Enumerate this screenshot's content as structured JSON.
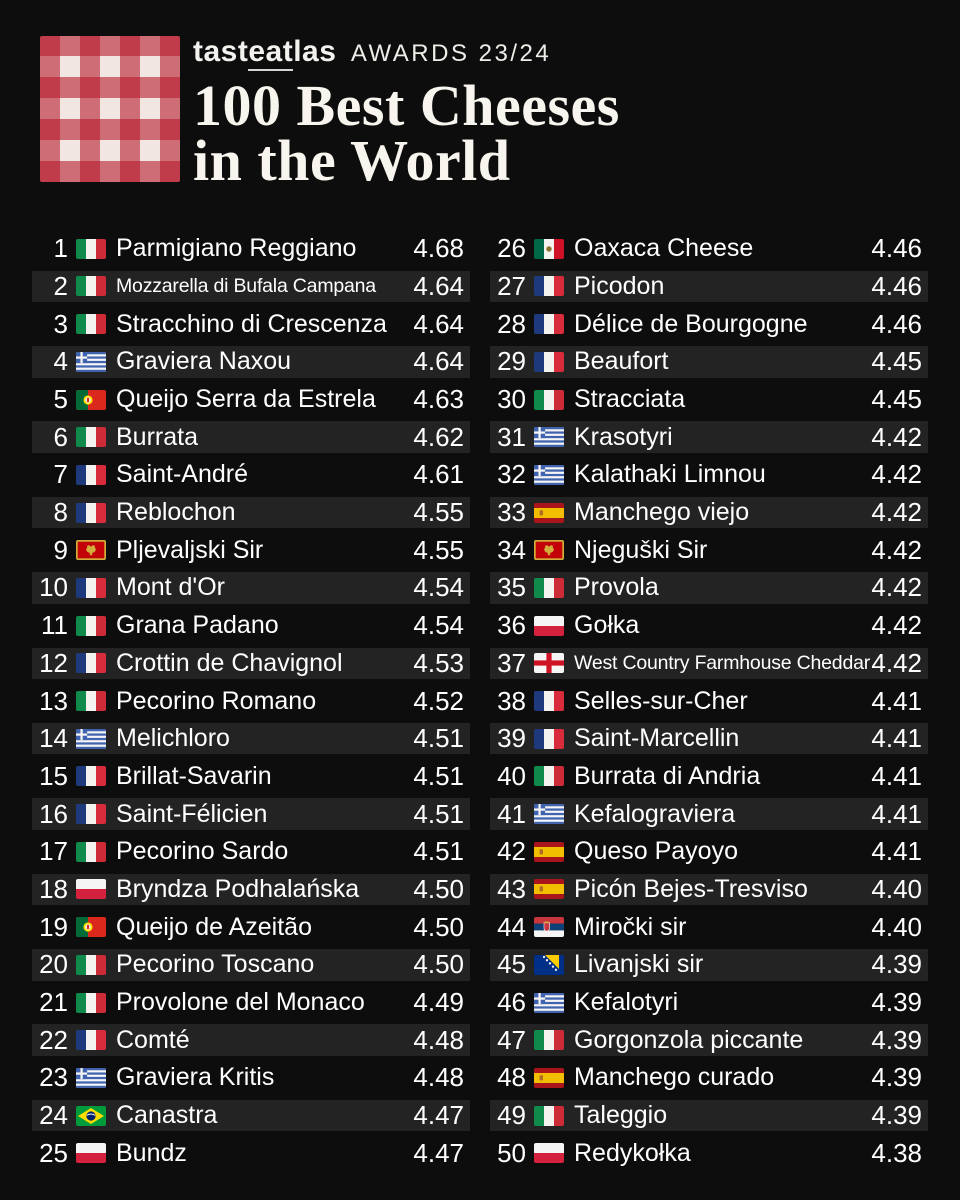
{
  "header": {
    "brand_pre": "tast",
    "brand_mid": "eat",
    "brand_post": "las",
    "awards": "AWARDS 23/24",
    "title_line1": "100 Best Cheeses",
    "title_line2": "in the World"
  },
  "colors": {
    "background": "#0D0D0D",
    "row_alt": "#232323",
    "text": "#FFFFFF",
    "title_text": "#F8F5EE",
    "logo_red": "#B71C2D",
    "logo_base": "#F2E6E2"
  },
  "logo_icon": "tasteatlas-gingham-checker",
  "chart_data": {
    "type": "table",
    "title": "100 Best Cheeses in the World",
    "subtitle": "tasteatlas AWARDS 23/24",
    "columns": [
      "rank",
      "country",
      "cheese",
      "rating"
    ],
    "layout": {
      "columns_split": [
        1,
        25,
        26,
        50
      ],
      "rating_min_shown": "4.38",
      "rating_max_shown": "4.68"
    },
    "rows": [
      {
        "rank": 1,
        "flag": "italy",
        "country": "Italy",
        "name": "Parmigiano Reggiano",
        "rating": "4.68"
      },
      {
        "rank": 2,
        "flag": "italy",
        "country": "Italy",
        "name": "Mozzarella di Bufala Campana",
        "rating": "4.64",
        "small": true
      },
      {
        "rank": 3,
        "flag": "italy",
        "country": "Italy",
        "name": "Stracchino di Crescenza",
        "rating": "4.64"
      },
      {
        "rank": 4,
        "flag": "greece",
        "country": "Greece",
        "name": "Graviera Naxou",
        "rating": "4.64"
      },
      {
        "rank": 5,
        "flag": "portugal",
        "country": "Portugal",
        "name": "Queijo Serra da Estrela",
        "rating": "4.63"
      },
      {
        "rank": 6,
        "flag": "italy",
        "country": "Italy",
        "name": "Burrata",
        "rating": "4.62"
      },
      {
        "rank": 7,
        "flag": "france",
        "country": "France",
        "name": "Saint-André",
        "rating": "4.61"
      },
      {
        "rank": 8,
        "flag": "france",
        "country": "France",
        "name": "Reblochon",
        "rating": "4.55"
      },
      {
        "rank": 9,
        "flag": "montenegro",
        "country": "Montenegro",
        "name": "Pljevaljski Sir",
        "rating": "4.55"
      },
      {
        "rank": 10,
        "flag": "france",
        "country": "France",
        "name": "Mont d'Or",
        "rating": "4.54"
      },
      {
        "rank": 11,
        "flag": "italy",
        "country": "Italy",
        "name": "Grana Padano",
        "rating": "4.54"
      },
      {
        "rank": 12,
        "flag": "france",
        "country": "France",
        "name": "Crottin de Chavignol",
        "rating": "4.53"
      },
      {
        "rank": 13,
        "flag": "italy",
        "country": "Italy",
        "name": "Pecorino Romano",
        "rating": "4.52"
      },
      {
        "rank": 14,
        "flag": "greece",
        "country": "Greece",
        "name": "Melichloro",
        "rating": "4.51"
      },
      {
        "rank": 15,
        "flag": "france",
        "country": "France",
        "name": "Brillat-Savarin",
        "rating": "4.51"
      },
      {
        "rank": 16,
        "flag": "france",
        "country": "France",
        "name": "Saint-Félicien",
        "rating": "4.51"
      },
      {
        "rank": 17,
        "flag": "italy",
        "country": "Italy",
        "name": "Pecorino Sardo",
        "rating": "4.51"
      },
      {
        "rank": 18,
        "flag": "poland",
        "country": "Poland",
        "name": "Bryndza Podhalańska",
        "rating": "4.50"
      },
      {
        "rank": 19,
        "flag": "portugal",
        "country": "Portugal",
        "name": "Queijo de Azeitão",
        "rating": "4.50"
      },
      {
        "rank": 20,
        "flag": "italy",
        "country": "Italy",
        "name": "Pecorino Toscano",
        "rating": "4.50"
      },
      {
        "rank": 21,
        "flag": "italy",
        "country": "Italy",
        "name": "Provolone del Monaco",
        "rating": "4.49"
      },
      {
        "rank": 22,
        "flag": "france",
        "country": "France",
        "name": "Comté",
        "rating": "4.48"
      },
      {
        "rank": 23,
        "flag": "greece",
        "country": "Greece",
        "name": "Graviera Kritis",
        "rating": "4.48"
      },
      {
        "rank": 24,
        "flag": "brazil",
        "country": "Brazil",
        "name": "Canastra",
        "rating": "4.47"
      },
      {
        "rank": 25,
        "flag": "poland",
        "country": "Poland",
        "name": "Bundz",
        "rating": "4.47"
      },
      {
        "rank": 26,
        "flag": "mexico",
        "country": "Mexico",
        "name": "Oaxaca Cheese",
        "rating": "4.46"
      },
      {
        "rank": 27,
        "flag": "france",
        "country": "France",
        "name": "Picodon",
        "rating": "4.46"
      },
      {
        "rank": 28,
        "flag": "france",
        "country": "France",
        "name": "Délice de Bourgogne",
        "rating": "4.46"
      },
      {
        "rank": 29,
        "flag": "france",
        "country": "France",
        "name": "Beaufort",
        "rating": "4.45"
      },
      {
        "rank": 30,
        "flag": "italy",
        "country": "Italy",
        "name": "Stracciata",
        "rating": "4.45"
      },
      {
        "rank": 31,
        "flag": "greece",
        "country": "Greece",
        "name": "Krasotyri",
        "rating": "4.42"
      },
      {
        "rank": 32,
        "flag": "greece",
        "country": "Greece",
        "name": "Kalathaki Limnou",
        "rating": "4.42"
      },
      {
        "rank": 33,
        "flag": "spain",
        "country": "Spain",
        "name": "Manchego viejo",
        "rating": "4.42"
      },
      {
        "rank": 34,
        "flag": "montenegro",
        "country": "Montenegro",
        "name": "Njeguški Sir",
        "rating": "4.42"
      },
      {
        "rank": 35,
        "flag": "italy",
        "country": "Italy",
        "name": "Provola",
        "rating": "4.42"
      },
      {
        "rank": 36,
        "flag": "poland",
        "country": "Poland",
        "name": "Gołka",
        "rating": "4.42"
      },
      {
        "rank": 37,
        "flag": "england",
        "country": "England",
        "name": "West Country Farmhouse Cheddar",
        "rating": "4.42",
        "small": true
      },
      {
        "rank": 38,
        "flag": "france",
        "country": "France",
        "name": "Selles-sur-Cher",
        "rating": "4.41"
      },
      {
        "rank": 39,
        "flag": "france",
        "country": "France",
        "name": "Saint-Marcellin",
        "rating": "4.41"
      },
      {
        "rank": 40,
        "flag": "italy",
        "country": "Italy",
        "name": "Burrata di Andria",
        "rating": "4.41"
      },
      {
        "rank": 41,
        "flag": "greece",
        "country": "Greece",
        "name": "Kefalograviera",
        "rating": "4.41"
      },
      {
        "rank": 42,
        "flag": "spain",
        "country": "Spain",
        "name": "Queso Payoyo",
        "rating": "4.41"
      },
      {
        "rank": 43,
        "flag": "spain",
        "country": "Spain",
        "name": "Picón Bejes-Tresviso",
        "rating": "4.40"
      },
      {
        "rank": 44,
        "flag": "serbia",
        "country": "Serbia",
        "name": "Miročki sir",
        "rating": "4.40"
      },
      {
        "rank": 45,
        "flag": "bosnia-herzegovina",
        "country": "Bosnia and Herzegovina",
        "name": "Livanjski sir",
        "rating": "4.39"
      },
      {
        "rank": 46,
        "flag": "greece",
        "country": "Greece",
        "name": "Kefalotyri",
        "rating": "4.39"
      },
      {
        "rank": 47,
        "flag": "italy",
        "country": "Italy",
        "name": "Gorgonzola piccante",
        "rating": "4.39"
      },
      {
        "rank": 48,
        "flag": "spain",
        "country": "Spain",
        "name": "Manchego curado",
        "rating": "4.39"
      },
      {
        "rank": 49,
        "flag": "italy",
        "country": "Italy",
        "name": "Taleggio",
        "rating": "4.39"
      },
      {
        "rank": 50,
        "flag": "poland",
        "country": "Poland",
        "name": "Redykołka",
        "rating": "4.38"
      }
    ]
  }
}
